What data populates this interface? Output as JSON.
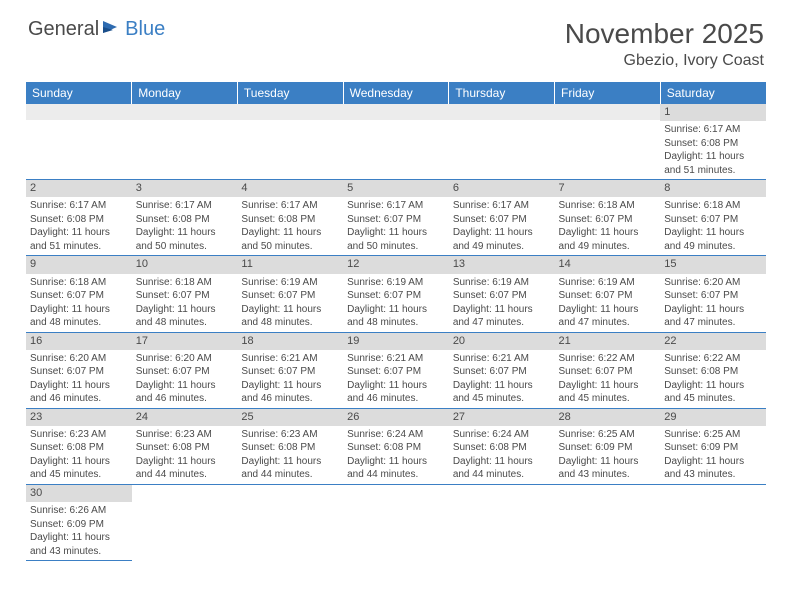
{
  "logo": {
    "text1": "General",
    "text2": "Blue"
  },
  "title": "November 2025",
  "location": "Gbezio, Ivory Coast",
  "colors": {
    "header_bg": "#3b7fc4",
    "header_text": "#ffffff",
    "daynum_bg": "#dcdcdc",
    "text": "#4a4a4a",
    "row_border": "#3b7fc4"
  },
  "day_headers": [
    "Sunday",
    "Monday",
    "Tuesday",
    "Wednesday",
    "Thursday",
    "Friday",
    "Saturday"
  ],
  "weeks": [
    [
      {
        "n": "",
        "sunrise": "",
        "sunset": "",
        "daylight": ""
      },
      {
        "n": "",
        "sunrise": "",
        "sunset": "",
        "daylight": ""
      },
      {
        "n": "",
        "sunrise": "",
        "sunset": "",
        "daylight": ""
      },
      {
        "n": "",
        "sunrise": "",
        "sunset": "",
        "daylight": ""
      },
      {
        "n": "",
        "sunrise": "",
        "sunset": "",
        "daylight": ""
      },
      {
        "n": "",
        "sunrise": "",
        "sunset": "",
        "daylight": ""
      },
      {
        "n": "1",
        "sunrise": "Sunrise: 6:17 AM",
        "sunset": "Sunset: 6:08 PM",
        "daylight": "Daylight: 11 hours and 51 minutes."
      }
    ],
    [
      {
        "n": "2",
        "sunrise": "Sunrise: 6:17 AM",
        "sunset": "Sunset: 6:08 PM",
        "daylight": "Daylight: 11 hours and 51 minutes."
      },
      {
        "n": "3",
        "sunrise": "Sunrise: 6:17 AM",
        "sunset": "Sunset: 6:08 PM",
        "daylight": "Daylight: 11 hours and 50 minutes."
      },
      {
        "n": "4",
        "sunrise": "Sunrise: 6:17 AM",
        "sunset": "Sunset: 6:08 PM",
        "daylight": "Daylight: 11 hours and 50 minutes."
      },
      {
        "n": "5",
        "sunrise": "Sunrise: 6:17 AM",
        "sunset": "Sunset: 6:07 PM",
        "daylight": "Daylight: 11 hours and 50 minutes."
      },
      {
        "n": "6",
        "sunrise": "Sunrise: 6:17 AM",
        "sunset": "Sunset: 6:07 PM",
        "daylight": "Daylight: 11 hours and 49 minutes."
      },
      {
        "n": "7",
        "sunrise": "Sunrise: 6:18 AM",
        "sunset": "Sunset: 6:07 PM",
        "daylight": "Daylight: 11 hours and 49 minutes."
      },
      {
        "n": "8",
        "sunrise": "Sunrise: 6:18 AM",
        "sunset": "Sunset: 6:07 PM",
        "daylight": "Daylight: 11 hours and 49 minutes."
      }
    ],
    [
      {
        "n": "9",
        "sunrise": "Sunrise: 6:18 AM",
        "sunset": "Sunset: 6:07 PM",
        "daylight": "Daylight: 11 hours and 48 minutes."
      },
      {
        "n": "10",
        "sunrise": "Sunrise: 6:18 AM",
        "sunset": "Sunset: 6:07 PM",
        "daylight": "Daylight: 11 hours and 48 minutes."
      },
      {
        "n": "11",
        "sunrise": "Sunrise: 6:19 AM",
        "sunset": "Sunset: 6:07 PM",
        "daylight": "Daylight: 11 hours and 48 minutes."
      },
      {
        "n": "12",
        "sunrise": "Sunrise: 6:19 AM",
        "sunset": "Sunset: 6:07 PM",
        "daylight": "Daylight: 11 hours and 48 minutes."
      },
      {
        "n": "13",
        "sunrise": "Sunrise: 6:19 AM",
        "sunset": "Sunset: 6:07 PM",
        "daylight": "Daylight: 11 hours and 47 minutes."
      },
      {
        "n": "14",
        "sunrise": "Sunrise: 6:19 AM",
        "sunset": "Sunset: 6:07 PM",
        "daylight": "Daylight: 11 hours and 47 minutes."
      },
      {
        "n": "15",
        "sunrise": "Sunrise: 6:20 AM",
        "sunset": "Sunset: 6:07 PM",
        "daylight": "Daylight: 11 hours and 47 minutes."
      }
    ],
    [
      {
        "n": "16",
        "sunrise": "Sunrise: 6:20 AM",
        "sunset": "Sunset: 6:07 PM",
        "daylight": "Daylight: 11 hours and 46 minutes."
      },
      {
        "n": "17",
        "sunrise": "Sunrise: 6:20 AM",
        "sunset": "Sunset: 6:07 PM",
        "daylight": "Daylight: 11 hours and 46 minutes."
      },
      {
        "n": "18",
        "sunrise": "Sunrise: 6:21 AM",
        "sunset": "Sunset: 6:07 PM",
        "daylight": "Daylight: 11 hours and 46 minutes."
      },
      {
        "n": "19",
        "sunrise": "Sunrise: 6:21 AM",
        "sunset": "Sunset: 6:07 PM",
        "daylight": "Daylight: 11 hours and 46 minutes."
      },
      {
        "n": "20",
        "sunrise": "Sunrise: 6:21 AM",
        "sunset": "Sunset: 6:07 PM",
        "daylight": "Daylight: 11 hours and 45 minutes."
      },
      {
        "n": "21",
        "sunrise": "Sunrise: 6:22 AM",
        "sunset": "Sunset: 6:07 PM",
        "daylight": "Daylight: 11 hours and 45 minutes."
      },
      {
        "n": "22",
        "sunrise": "Sunrise: 6:22 AM",
        "sunset": "Sunset: 6:08 PM",
        "daylight": "Daylight: 11 hours and 45 minutes."
      }
    ],
    [
      {
        "n": "23",
        "sunrise": "Sunrise: 6:23 AM",
        "sunset": "Sunset: 6:08 PM",
        "daylight": "Daylight: 11 hours and 45 minutes."
      },
      {
        "n": "24",
        "sunrise": "Sunrise: 6:23 AM",
        "sunset": "Sunset: 6:08 PM",
        "daylight": "Daylight: 11 hours and 44 minutes."
      },
      {
        "n": "25",
        "sunrise": "Sunrise: 6:23 AM",
        "sunset": "Sunset: 6:08 PM",
        "daylight": "Daylight: 11 hours and 44 minutes."
      },
      {
        "n": "26",
        "sunrise": "Sunrise: 6:24 AM",
        "sunset": "Sunset: 6:08 PM",
        "daylight": "Daylight: 11 hours and 44 minutes."
      },
      {
        "n": "27",
        "sunrise": "Sunrise: 6:24 AM",
        "sunset": "Sunset: 6:08 PM",
        "daylight": "Daylight: 11 hours and 44 minutes."
      },
      {
        "n": "28",
        "sunrise": "Sunrise: 6:25 AM",
        "sunset": "Sunset: 6:09 PM",
        "daylight": "Daylight: 11 hours and 43 minutes."
      },
      {
        "n": "29",
        "sunrise": "Sunrise: 6:25 AM",
        "sunset": "Sunset: 6:09 PM",
        "daylight": "Daylight: 11 hours and 43 minutes."
      }
    ],
    [
      {
        "n": "30",
        "sunrise": "Sunrise: 6:26 AM",
        "sunset": "Sunset: 6:09 PM",
        "daylight": "Daylight: 11 hours and 43 minutes."
      },
      {
        "n": "",
        "sunrise": "",
        "sunset": "",
        "daylight": ""
      },
      {
        "n": "",
        "sunrise": "",
        "sunset": "",
        "daylight": ""
      },
      {
        "n": "",
        "sunrise": "",
        "sunset": "",
        "daylight": ""
      },
      {
        "n": "",
        "sunrise": "",
        "sunset": "",
        "daylight": ""
      },
      {
        "n": "",
        "sunrise": "",
        "sunset": "",
        "daylight": ""
      },
      {
        "n": "",
        "sunrise": "",
        "sunset": "",
        "daylight": ""
      }
    ]
  ]
}
